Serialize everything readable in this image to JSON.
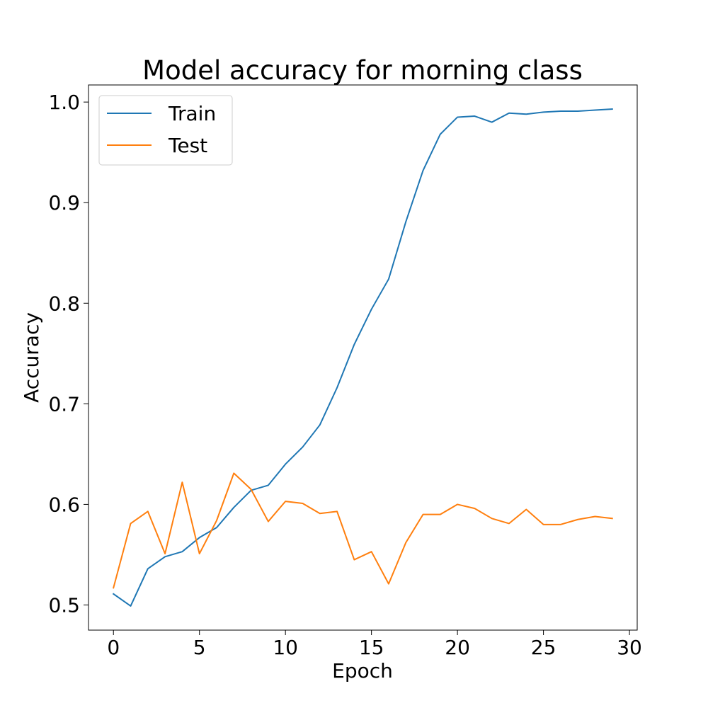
{
  "chart_data": {
    "type": "line",
    "title": "Model accuracy for morning class",
    "xlabel": "Epoch",
    "ylabel": "Accuracy",
    "xlim": [
      -1.45,
      30.45
    ],
    "ylim": [
      0.475,
      1.017
    ],
    "xticks": [
      0,
      5,
      10,
      15,
      20,
      25,
      30
    ],
    "xtick_labels": [
      "0",
      "5",
      "10",
      "15",
      "20",
      "25",
      "30"
    ],
    "yticks": [
      0.5,
      0.6,
      0.7,
      0.8,
      0.9,
      1.0
    ],
    "ytick_labels": [
      "0.5",
      "0.6",
      "0.7",
      "0.8",
      "0.9",
      "1.0"
    ],
    "grid": false,
    "legend_position": "top-left",
    "x": [
      0,
      1,
      2,
      3,
      4,
      5,
      6,
      7,
      8,
      9,
      10,
      11,
      12,
      13,
      14,
      15,
      16,
      17,
      18,
      19,
      20,
      21,
      22,
      23,
      24,
      25,
      26,
      27,
      28,
      29
    ],
    "series": [
      {
        "name": "Train",
        "color": "#1f77b4",
        "values": [
          0.511,
          0.499,
          0.536,
          0.548,
          0.553,
          0.567,
          0.577,
          0.597,
          0.614,
          0.619,
          0.64,
          0.657,
          0.679,
          0.716,
          0.759,
          0.794,
          0.824,
          0.881,
          0.932,
          0.968,
          0.985,
          0.986,
          0.98,
          0.989,
          0.988,
          0.99,
          0.991,
          0.991,
          0.992,
          0.993
        ]
      },
      {
        "name": "Test",
        "color": "#ff7f0e",
        "values": [
          0.517,
          0.581,
          0.593,
          0.551,
          0.622,
          0.551,
          0.584,
          0.631,
          0.615,
          0.583,
          0.603,
          0.601,
          0.591,
          0.593,
          0.545,
          0.553,
          0.521,
          0.562,
          0.59,
          0.59,
          0.6,
          0.596,
          0.586,
          0.581,
          0.595,
          0.58,
          0.58,
          0.585,
          0.588,
          0.586
        ]
      }
    ]
  }
}
